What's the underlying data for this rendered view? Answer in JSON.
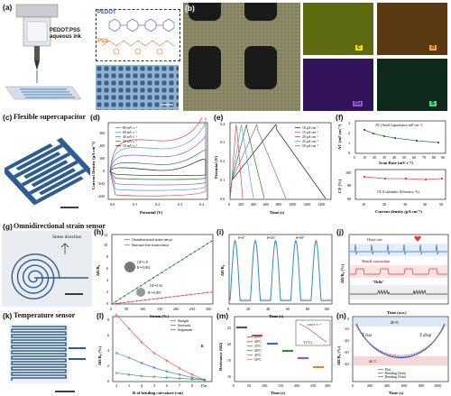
{
  "panels": {
    "a": {
      "label": "(a)",
      "ink_label": "PEDOT:PSS aqueous ink",
      "pedot": "PEDOT",
      "pss": "PSS"
    },
    "b": {
      "label": "(b)",
      "maps": [
        "C",
        "O",
        "Cu",
        "S"
      ]
    },
    "c": {
      "label": "(c)",
      "title": "Flexible supercapacitor"
    },
    "g": {
      "label": "(g)",
      "title": "Omnidirectional strain sensor",
      "annotation": "Stress direction"
    },
    "k": {
      "label": "(k)",
      "title": "Temperature sensor"
    }
  },
  "charts": {
    "d": {
      "label": "(d)",
      "xlabel": "Potential (V)",
      "ylabel": "Current Density (μA cm⁻²)",
      "xticks": [
        "0.0",
        "0.1",
        "0.2",
        "0.3",
        "0.4"
      ],
      "yticks": [
        "-200",
        "-100",
        "0",
        "100",
        "200",
        "300"
      ],
      "legend": [
        "80 mV s⁻¹",
        "60 mV s⁻¹",
        "40 mV s⁻¹",
        "20 mV s⁻¹",
        "10 mV s⁻¹"
      ],
      "colors": [
        "#e8434a",
        "#4aa3df",
        "#8e5cc9",
        "#2e7d32",
        "#222222"
      ]
    },
    "e": {
      "label": "(e)",
      "xlabel": "Time (s)",
      "ylabel": "Potential (V)",
      "xticks": [
        "0",
        "200",
        "400",
        "600",
        "800",
        "1000",
        "1200",
        "1400"
      ],
      "yticks": [
        "0.0",
        "0.1",
        "0.2",
        "0.3",
        "0.4"
      ],
      "legend": [
        "10 μA cm⁻²",
        "15 μA cm⁻²",
        "20 μA cm⁻²",
        "25 μA cm⁻²",
        "50 μA cm⁻²"
      ],
      "colors": [
        "#222222",
        "#8e5cc9",
        "#2e7d32",
        "#4aa3df",
        "#e8434a"
      ]
    },
    "f": {
      "label": "(f)",
      "ylabel_top": "AC (mF cm⁻²)",
      "xlabel_top": "Scan Rate (mV s⁻¹)",
      "legend_top": "AC (Areal Capacitance, mF cm⁻²)",
      "ylabel_bottom": "CE (%)",
      "xlabel_bottom": "Current density (μA cm⁻²)",
      "legend_bottom": "CE (Coulombic Efficiency, %)",
      "xticks_top": [
        "0",
        "10",
        "20",
        "30",
        "40",
        "50",
        "60",
        "70",
        "80",
        "90"
      ],
      "yticks_top": [
        "0",
        "1",
        "2",
        "3"
      ],
      "xticks_bottom": [
        "10",
        "20",
        "30",
        "40",
        "50"
      ],
      "yticks_bottom": [
        "60",
        "80",
        "100"
      ]
    },
    "h": {
      "label": "(h)",
      "xlabel": "Strain (%)",
      "ylabel": "ΔR/R₀",
      "xticks": [
        "0",
        "50",
        "100",
        "150",
        "200",
        "250",
        "300"
      ],
      "yticks": [
        "0",
        "2",
        "4",
        "6",
        "8",
        "10",
        "12"
      ],
      "legend": [
        "Omnidirectional strain sensor",
        "Structure-free strain sensor"
      ],
      "ann1": "GF=1.8",
      "ann1b": "R²=0.992",
      "ann2": "GF=0.34",
      "ann2b": "R²=0.995"
    },
    "i": {
      "label": "(i)",
      "xlabel": "Time (s)",
      "ylabel": "ΔR/R₀",
      "xticks": [
        "0",
        "20",
        "40",
        "60",
        "80",
        "100"
      ],
      "legend": [
        "θ=0°",
        "θ=45°",
        "θ=90°"
      ]
    },
    "j": {
      "label": "(j)",
      "xlabel": "Time (a.u.)",
      "ylabel": "ΔR/R₀ (%)",
      "rows": [
        "Heart rate",
        "Muscle contraction",
        "\"Hello\""
      ]
    },
    "l": {
      "label": "(l)",
      "xlabel": "R of bending curvature (cm)",
      "ylabel": "ΔR/R₀ (%)",
      "xticks": [
        "2",
        "3",
        "4",
        "5",
        "6",
        "7",
        "8",
        "Flat"
      ],
      "yticks": [
        "0",
        "2",
        "4",
        "6",
        "8"
      ],
      "legend": [
        "Straight",
        "Sawtooth",
        "Serpentine"
      ],
      "ann": "R"
    },
    "m": {
      "label": "(m)",
      "xlabel": "Time (s)",
      "ylabel": "Resistance (kΩ)",
      "xticks": [
        "0",
        "50",
        "100",
        "150",
        "200",
        "250",
        "300"
      ],
      "yticks": [
        "10",
        "15",
        "20",
        "25"
      ],
      "legend": [
        "25°C",
        "30°C",
        "35°C",
        "40°C",
        "45°C",
        "50°C"
      ],
      "inset_x": "T (°C)",
      "inset_note": "-0.82% °C⁻¹"
    },
    "n": {
      "label": "(n)",
      "xlabel": "Time (s)",
      "ylabel": "ΔR/R₀ (%)",
      "xticks": [
        "0",
        "200",
        "400",
        "600",
        "800",
        "1000"
      ],
      "yticks": [
        "-40",
        "-30",
        "-20",
        "-10",
        "0"
      ],
      "top_note": "25 °C",
      "bottom_note": "40 °C",
      "rise": "T rise",
      "drop": "T drop",
      "legend": [
        "Flat",
        "Bending (3cm)",
        "Bending (5cm)"
      ]
    }
  }
}
